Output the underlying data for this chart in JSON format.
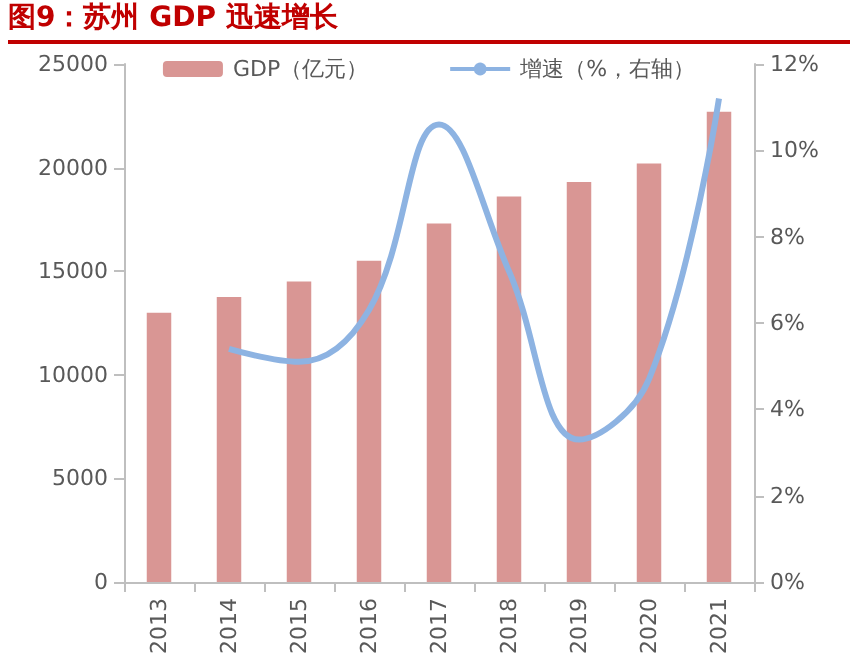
{
  "chart_data": {
    "type": "bar",
    "title": "图9：苏州 GDP 迅速增长",
    "categories": [
      "2013",
      "2014",
      "2015",
      "2016",
      "2017",
      "2018",
      "2019",
      "2020",
      "2021"
    ],
    "series": [
      {
        "name": "GDP（亿元）",
        "color": "#d99694",
        "values": [
          13000,
          13760,
          14500,
          15500,
          17300,
          18600,
          19300,
          20200,
          22700
        ]
      },
      {
        "name": "增速（%，右轴）",
        "type": "line",
        "axis": "y2",
        "color": "#8db3e2",
        "values": [
          null,
          5.4,
          5.1,
          6.3,
          10.6,
          7.2,
          3.3,
          4.7,
          11.2
        ]
      }
    ],
    "ylim": [
      0,
      25000
    ],
    "yticks": [
      0,
      5000,
      10000,
      15000,
      20000,
      25000
    ],
    "y2lim": [
      0,
      12
    ],
    "y2ticks": [
      {
        "value": 0,
        "label": "0%"
      },
      {
        "value": 2,
        "label": "2%"
      },
      {
        "value": 4,
        "label": "4%"
      },
      {
        "value": 6,
        "label": "6%"
      },
      {
        "value": 8,
        "label": "8%"
      },
      {
        "value": 10,
        "label": "10%"
      },
      {
        "value": 12,
        "label": "12%"
      }
    ],
    "legend": "top",
    "grid": false,
    "marker": "none",
    "line_style": "solid"
  }
}
